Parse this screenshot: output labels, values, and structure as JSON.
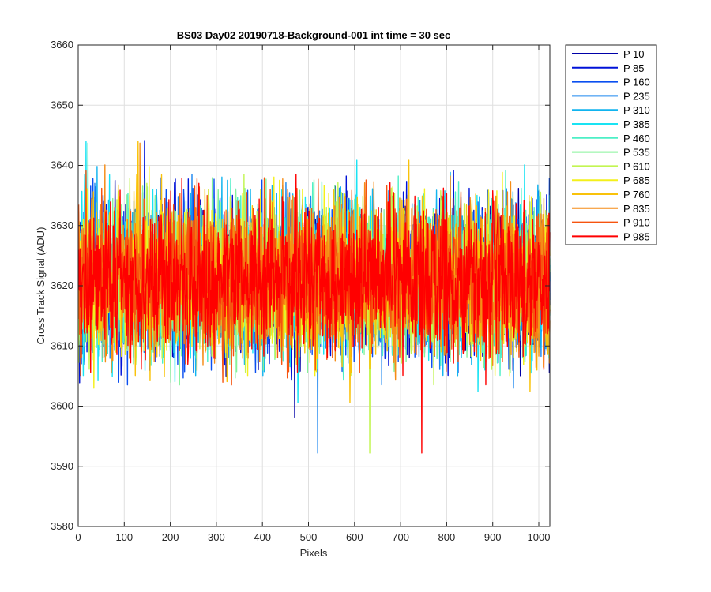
{
  "chart_data": {
    "type": "line",
    "title": "BS03 Day02 20190718-Background-001 int time = 30 sec",
    "xlabel": "Pixels",
    "ylabel": "Cross Track Signal (ADU)",
    "xlim": [
      0,
      1024
    ],
    "ylim": [
      3580,
      3660
    ],
    "xticks": [
      "0",
      "100",
      "200",
      "300",
      "400",
      "500",
      "600",
      "700",
      "800",
      "900",
      "1000"
    ],
    "yticks": [
      "3580",
      "3590",
      "3600",
      "3610",
      "3620",
      "3630",
      "3640",
      "3650",
      "3660"
    ],
    "grid": true,
    "legend_position": "outside-top-right",
    "noise_center": 3621,
    "noise_sigma": 6,
    "n_points": 1024,
    "series": [
      {
        "name": "P 10",
        "color": "#0000a8"
      },
      {
        "name": "P 85",
        "color": "#0012d8"
      },
      {
        "name": "P 160",
        "color": "#0a4ff0"
      },
      {
        "name": "P 235",
        "color": "#1b86ef"
      },
      {
        "name": "P 310",
        "color": "#11b4ef"
      },
      {
        "name": "P 385",
        "color": "#19e3f3"
      },
      {
        "name": "P 460",
        "color": "#4defc6"
      },
      {
        "name": "P 535",
        "color": "#86f39a"
      },
      {
        "name": "P 610",
        "color": "#c2f552"
      },
      {
        "name": "P 685",
        "color": "#f4f01b"
      },
      {
        "name": "P 760",
        "color": "#f9c20a"
      },
      {
        "name": "P 835",
        "color": "#f68c16"
      },
      {
        "name": "P 910",
        "color": "#f6540f"
      },
      {
        "name": "P 985",
        "color": "#ff0000"
      }
    ]
  }
}
